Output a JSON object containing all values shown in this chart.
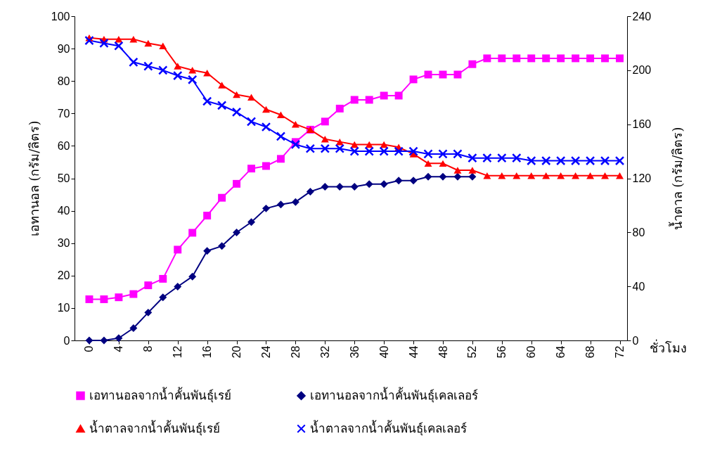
{
  "chart_data": {
    "type": "line",
    "xlabel": "ชั่วโมง",
    "ylabel": "เอทานอล (กรัม/ลิตร)",
    "y2label": "น้ำตาล (กรัม/ลิตร)",
    "x": [
      0,
      2,
      4,
      6,
      8,
      10,
      12,
      14,
      16,
      18,
      20,
      22,
      24,
      26,
      28,
      30,
      32,
      34,
      36,
      38,
      40,
      42,
      44,
      46,
      48,
      50,
      52,
      54,
      56,
      58,
      60,
      62,
      64,
      66,
      68,
      70,
      72
    ],
    "xlim": [
      -2,
      73
    ],
    "xticks": [
      0,
      4,
      8,
      12,
      16,
      20,
      24,
      28,
      32,
      36,
      40,
      44,
      48,
      52,
      56,
      60,
      64,
      68,
      72
    ],
    "ylim": [
      0,
      100
    ],
    "yticks": [
      0,
      10,
      20,
      30,
      40,
      50,
      60,
      70,
      80,
      90,
      100
    ],
    "y2lim": [
      0,
      240
    ],
    "y2ticks": [
      0,
      40,
      80,
      120,
      160,
      200,
      240
    ],
    "grid": false,
    "legend": "bottom",
    "series": [
      {
        "name": "เอทานอลจากน้ำคั้นพันธุ์เรย์",
        "color": "#ff00ff",
        "marker": "square",
        "values": [
          12.7,
          12.7,
          13.3,
          14.3,
          17,
          19,
          28,
          33.2,
          38.5,
          44,
          48.3,
          53,
          53.8,
          56,
          61.2,
          65,
          67.5,
          71.5,
          74.2,
          74.2,
          75.5,
          75.5,
          80.5,
          82,
          82,
          82,
          85.2,
          87,
          87,
          87,
          87,
          87,
          87,
          87,
          87,
          87,
          87
        ]
      },
      {
        "name": "เอทานอลจากน้ำคั้นพันธุ์เคลเลอร์",
        "color": "#000080",
        "marker": "diamond",
        "values": [
          0,
          0,
          0.7,
          3.8,
          8.6,
          13.3,
          16.6,
          19.7,
          27.6,
          29.1,
          33.3,
          36.5,
          40.7,
          41.9,
          42.7,
          45.9,
          47.4,
          47.4,
          47.4,
          48.2,
          48.2,
          49.3,
          49.3,
          50.5,
          50.5,
          50.5,
          50.5,
          null,
          null,
          null,
          null,
          null,
          null,
          null,
          null,
          null,
          null
        ]
      },
      {
        "name": "น้ำตาลจากน้ำคั้นพันธุ์เรย์",
        "color": "#ff0000",
        "marker": "triangle",
        "axis": "y2",
        "values": [
          224,
          223,
          223,
          223,
          220,
          218,
          203,
          200,
          198,
          189,
          182,
          180,
          171,
          167,
          160,
          156,
          149,
          147,
          145,
          145,
          145,
          143,
          138,
          131,
          131,
          126,
          126,
          122,
          122,
          122,
          122,
          122,
          122,
          122,
          122,
          122,
          122
        ]
      },
      {
        "name": "น้ำตาลจากน้ำคั้นพันธุ์เคลเลอร์",
        "color": "#0000ff",
        "marker": "cross",
        "axis": "y2",
        "values": [
          222,
          220,
          218,
          206,
          203,
          200,
          196,
          193,
          177,
          174,
          169,
          162,
          158,
          151,
          145,
          142,
          142,
          142,
          140,
          140,
          140,
          140,
          140,
          138,
          138,
          138,
          135,
          135,
          135,
          135,
          133,
          133,
          133,
          133,
          133,
          133,
          133
        ]
      }
    ]
  }
}
